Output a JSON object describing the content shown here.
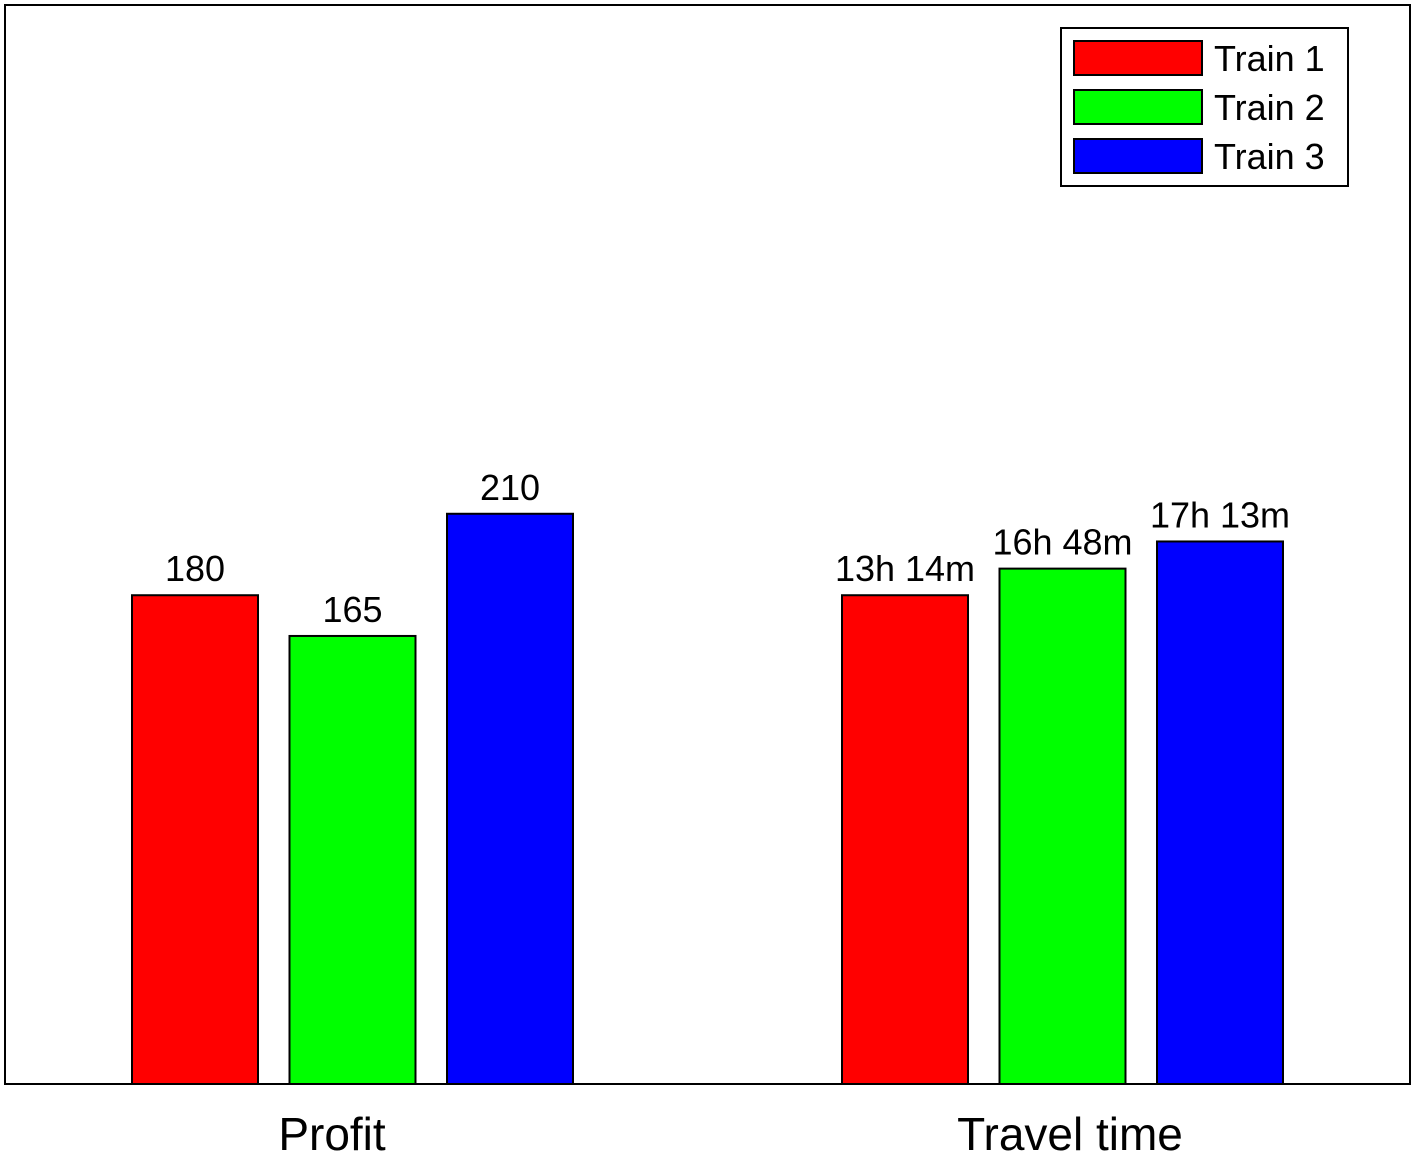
{
  "chart_data": {
    "type": "bar",
    "title": "",
    "xlabel": "",
    "ylabel": "",
    "grid": false,
    "legend_position": "top-right",
    "categories": [
      "Profit",
      "Travel time"
    ],
    "series": [
      {
        "name": "Train 1",
        "color": "#ff0000",
        "values": [
          180,
          180
        ],
        "labels": [
          "180",
          "13h 14m"
        ]
      },
      {
        "name": "Train 2",
        "color": "#00ff00",
        "values": [
          165,
          189.8
        ],
        "labels": [
          "165",
          "16h 48m"
        ]
      },
      {
        "name": "Train 3",
        "color": "#0000ff",
        "values": [
          210,
          199.8
        ],
        "labels": [
          "210",
          "17h 13m"
        ]
      }
    ],
    "ylim": [
      0,
      250
    ]
  }
}
